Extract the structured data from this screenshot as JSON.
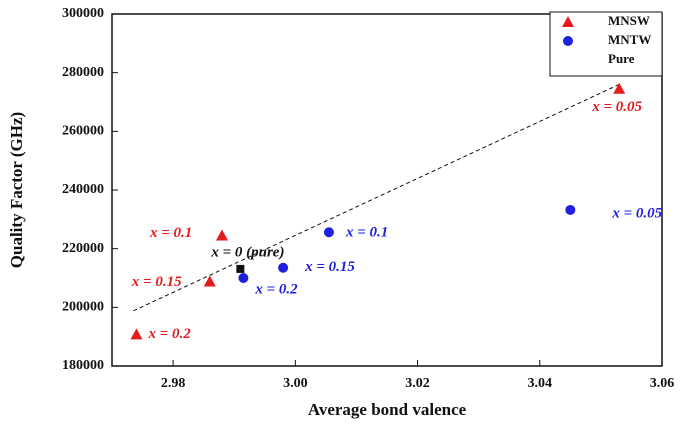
{
  "chart_data": {
    "type": "scatter",
    "x_label": "Average bond valence",
    "y_label": "Quality Factor (GHz)",
    "xlim": [
      2.97,
      3.06
    ],
    "ylim": [
      180000,
      300000
    ],
    "xticks": [
      2.98,
      {
        "value": 3,
        "label": "3.00"
      },
      3.02,
      3.04,
      3.06
    ],
    "yticks": [
      180000,
      200000,
      220000,
      240000,
      260000,
      280000,
      300000
    ],
    "series": [
      {
        "name": "MNSW",
        "color": "#e41a1c",
        "marker": "triangle",
        "x": [
          3.053,
          2.988,
          2.986,
          2.974
        ],
        "values": [
          274500,
          224500,
          208800,
          190800
        ],
        "point_labels": [
          "x = 0.05",
          "x = 0.1",
          "x = 0.15",
          "x = 0.2"
        ]
      },
      {
        "name": "MNTW",
        "color": "#1f1fe0",
        "marker": "circle",
        "x": [
          3.045,
          3.0055,
          2.998,
          2.9915
        ],
        "values": [
          233200,
          225600,
          213500,
          210000
        ],
        "point_labels": [
          "x = 0.05",
          "x = 0.1",
          "x = 0.15",
          "x = 0.2"
        ]
      },
      {
        "name": "Pure",
        "color": "#111111",
        "marker": "square",
        "x": [
          2.991
        ],
        "values": [
          213100
        ],
        "point_labels": [
          "x = 0 (pure)"
        ]
      }
    ],
    "trend_line": {
      "x": [
        2.9735,
        3.053
      ],
      "values": [
        198800,
        276000
      ]
    }
  }
}
